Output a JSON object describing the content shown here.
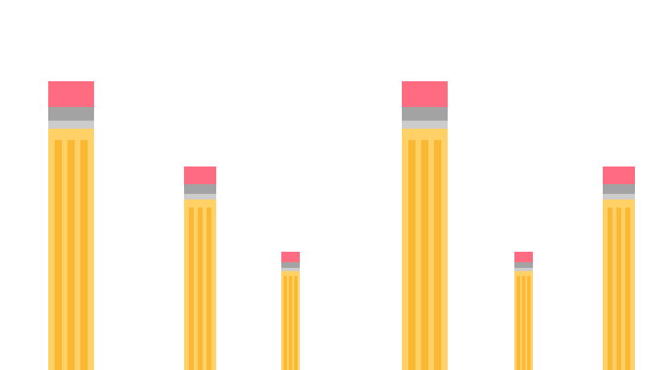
{
  "colors": {
    "background": "#ffffff",
    "eraser": "#ff6b81",
    "ferrule_dark": "#a3a3a3",
    "ferrule_light": "#cccccc",
    "body": "#ffd166",
    "stripe": "#fdb833"
  },
  "pencils": [
    {
      "level": 0.78,
      "size": "large"
    },
    {
      "level": 0.55,
      "size": "medium"
    },
    {
      "level": 0.32,
      "size": "small"
    },
    {
      "level": 0.78,
      "size": "large"
    },
    {
      "level": 0.32,
      "size": "small"
    },
    {
      "level": 0.55,
      "size": "medium"
    }
  ]
}
